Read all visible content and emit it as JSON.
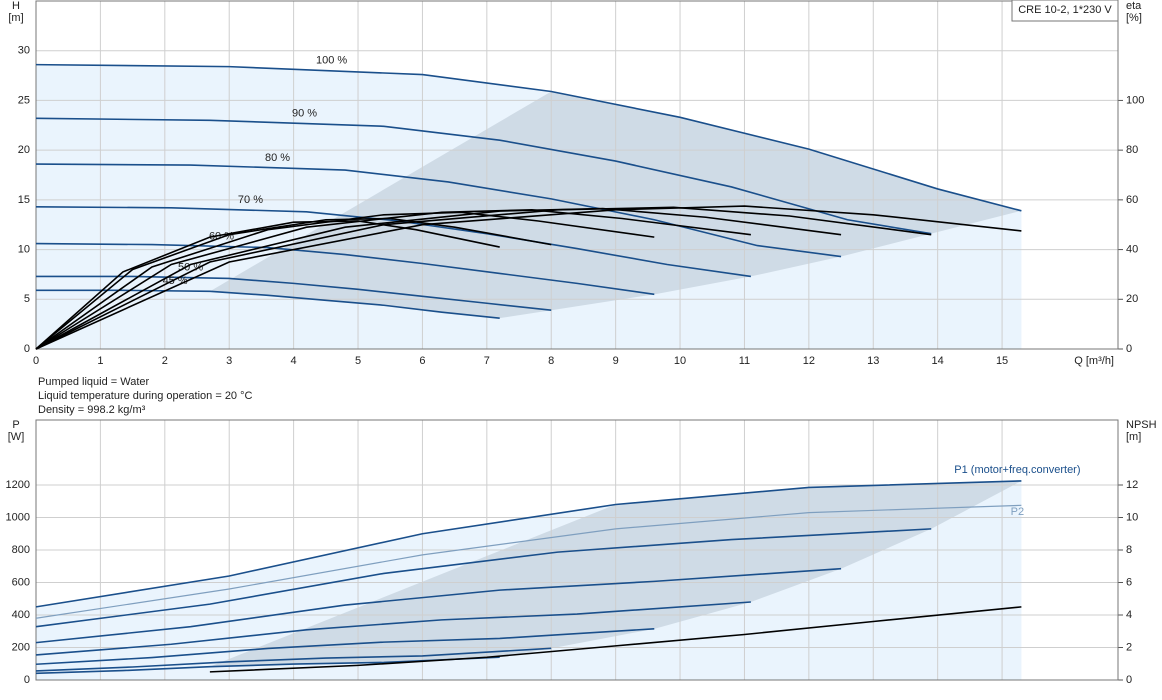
{
  "chart_data": [
    {
      "type": "line",
      "y_label": "H",
      "y_unit": "[m]",
      "y2_label": "eta",
      "y2_unit": "[%]",
      "x_label": "Q [m³/h]",
      "box_label": "CRE 10-2, 1*230 V",
      "xlim": [
        0,
        16.8
      ],
      "xticks": [
        0,
        1,
        2,
        3,
        4,
        5,
        6,
        7,
        8,
        9,
        10,
        11,
        12,
        13,
        14,
        15
      ],
      "ylim": [
        0,
        35
      ],
      "yticks": [
        0,
        5,
        10,
        15,
        20,
        25,
        30
      ],
      "y2lim": [
        0,
        140
      ],
      "y2ticks": [
        0,
        20,
        40,
        60,
        80,
        100
      ],
      "grid": true,
      "series": [
        {
          "name": "100 %",
          "color": "#1a4f8b",
          "x": [
            0,
            3,
            6,
            8,
            10,
            12,
            14,
            15.3
          ],
          "values": [
            28.6,
            28.4,
            27.6,
            25.9,
            23.3,
            20.1,
            16.1,
            13.9
          ]
        },
        {
          "name": "90 %",
          "color": "#1a4f8b",
          "x": [
            0,
            2.7,
            5.4,
            7.2,
            9,
            10.8,
            12.6,
            13.9
          ],
          "values": [
            23.2,
            23.0,
            22.4,
            21.0,
            18.9,
            16.3,
            13.0,
            11.6
          ]
        },
        {
          "name": "80 %",
          "color": "#1a4f8b",
          "x": [
            0,
            2.4,
            4.8,
            6.4,
            8,
            9.6,
            11.2,
            12.5
          ],
          "values": [
            18.6,
            18.5,
            18.0,
            16.8,
            15.1,
            13.0,
            10.4,
            9.3
          ]
        },
        {
          "name": "70 %",
          "color": "#1a4f8b",
          "x": [
            0,
            2.1,
            4.2,
            5.6,
            7,
            8.4,
            9.8,
            11.1
          ],
          "values": [
            14.3,
            14.2,
            13.8,
            12.9,
            11.6,
            10.1,
            8.5,
            7.3
          ]
        },
        {
          "name": "60 %",
          "color": "#1a4f8b",
          "x": [
            0,
            1.8,
            3.6,
            4.8,
            6,
            7.2,
            8.4,
            9.6
          ],
          "values": [
            10.6,
            10.5,
            10.2,
            9.5,
            8.6,
            7.6,
            6.6,
            5.5
          ]
        },
        {
          "name": "50 %",
          "color": "#1a4f8b",
          "x": [
            0,
            1.5,
            3,
            4,
            5,
            6,
            7,
            8
          ],
          "values": [
            7.3,
            7.3,
            7.1,
            6.6,
            6.0,
            5.3,
            4.6,
            3.9
          ]
        },
        {
          "name": "45 %",
          "color": "#1a4f8b",
          "x": [
            0,
            1.35,
            2.7,
            3.6,
            4.5,
            5.4,
            6.3,
            7.2
          ],
          "values": [
            5.9,
            5.9,
            5.8,
            5.4,
            4.9,
            4.4,
            3.7,
            3.1
          ]
        },
        {
          "color": "#000000",
          "axis": "y2",
          "x": [
            0,
            3,
            6,
            9,
            11,
            13,
            15.3
          ],
          "values": [
            0,
            35,
            50,
            56,
            57.5,
            54,
            47.5
          ]
        },
        {
          "color": "#000000",
          "axis": "y2",
          "x": [
            0,
            2.7,
            5.4,
            8.1,
            9.9,
            11.7,
            13.9
          ],
          "values": [
            0,
            35,
            50,
            56,
            57,
            53.5,
            46
          ]
        },
        {
          "color": "#000000",
          "axis": "y2",
          "x": [
            0,
            2.4,
            4.8,
            7.2,
            8.8,
            10.4,
            12.5
          ],
          "values": [
            0,
            34,
            49,
            55.5,
            56.5,
            53,
            46
          ]
        },
        {
          "color": "#000000",
          "axis": "y2",
          "x": [
            0,
            2.1,
            4.2,
            6.3,
            7.7,
            9.1,
            11.1
          ],
          "values": [
            0,
            34,
            49,
            55,
            56,
            52.5,
            46
          ]
        },
        {
          "color": "#000000",
          "axis": "y2",
          "x": [
            0,
            1.8,
            3.6,
            5.4,
            6.6,
            7.8,
            9.6
          ],
          "values": [
            0,
            33,
            48,
            54,
            55,
            51.5,
            45
          ]
        },
        {
          "color": "#000000",
          "axis": "y2",
          "x": [
            0,
            1.5,
            3,
            4.5,
            5.5,
            6.5,
            8
          ],
          "values": [
            0,
            32,
            46,
            52,
            52.5,
            49,
            42
          ]
        },
        {
          "color": "#000000",
          "axis": "y2",
          "x": [
            0,
            1.35,
            2.7,
            4,
            5,
            5.9,
            7.2
          ],
          "values": [
            0,
            31,
            45,
            51,
            51.5,
            48,
            41
          ]
        }
      ],
      "notes": [
        "Pumped liquid = Water",
        "Liquid temperature during operation = 20 °C",
        "Density = 998.2 kg/m³"
      ]
    },
    {
      "type": "line",
      "y_label": "P",
      "y_unit": "[W]",
      "y2_label": "NPSH",
      "y2_unit": "[m]",
      "xlim": [
        0,
        16.8
      ],
      "xticks": [
        0,
        1,
        2,
        3,
        4,
        5,
        6,
        7,
        8,
        9,
        10,
        11,
        12,
        13,
        14,
        15
      ],
      "ylim": [
        0,
        1600
      ],
      "yticks": [
        0,
        200,
        400,
        600,
        800,
        1000,
        1200
      ],
      "y2lim": [
        0,
        16
      ],
      "y2ticks": [
        0,
        2,
        4,
        6,
        8,
        10,
        12
      ],
      "grid": true,
      "series": [
        {
          "name": "P1 (motor+freq.converter)",
          "color": "#1a4f8b",
          "x": [
            0,
            3,
            6,
            9,
            12,
            15.3
          ],
          "values": [
            450,
            640,
            900,
            1080,
            1185,
            1225
          ]
        },
        {
          "color": "#1a4f8b",
          "x": [
            0,
            2.7,
            5.4,
            8.1,
            10.8,
            13.9
          ],
          "values": [
            328,
            467,
            656,
            787,
            864,
            930
          ]
        },
        {
          "color": "#1a4f8b",
          "x": [
            0,
            2.4,
            4.8,
            7.2,
            9.6,
            12.5
          ],
          "values": [
            230,
            328,
            461,
            553,
            607,
            685
          ]
        },
        {
          "color": "#1a4f8b",
          "x": [
            0,
            2.1,
            4.2,
            6.3,
            8.4,
            11.1
          ],
          "values": [
            154,
            220,
            309,
            370,
            406,
            480
          ]
        },
        {
          "color": "#1a4f8b",
          "x": [
            0,
            1.8,
            3.6,
            5.4,
            7.2,
            9.6
          ],
          "values": [
            97,
            138,
            194,
            233,
            256,
            315
          ]
        },
        {
          "color": "#1a4f8b",
          "x": [
            0,
            1.5,
            3,
            4.5,
            6,
            8
          ],
          "values": [
            56,
            80,
            112,
            135,
            148,
            195
          ]
        },
        {
          "color": "#1a4f8b",
          "x": [
            0,
            1.35,
            2.7,
            4,
            5.4,
            7.2
          ],
          "values": [
            41,
            58,
            82,
            98,
            108,
            140
          ]
        },
        {
          "name": "P2",
          "color": "#7f9fbf",
          "x": [
            0,
            3,
            6,
            9,
            12,
            15.3
          ],
          "values": [
            380,
            560,
            770,
            930,
            1030,
            1075
          ]
        },
        {
          "color": "#000000",
          "axis": "y2",
          "x": [
            2.7,
            5,
            7,
            9,
            11,
            13,
            15.3
          ],
          "values": [
            0.5,
            0.9,
            1.4,
            2.1,
            2.8,
            3.6,
            4.5
          ]
        }
      ]
    }
  ]
}
